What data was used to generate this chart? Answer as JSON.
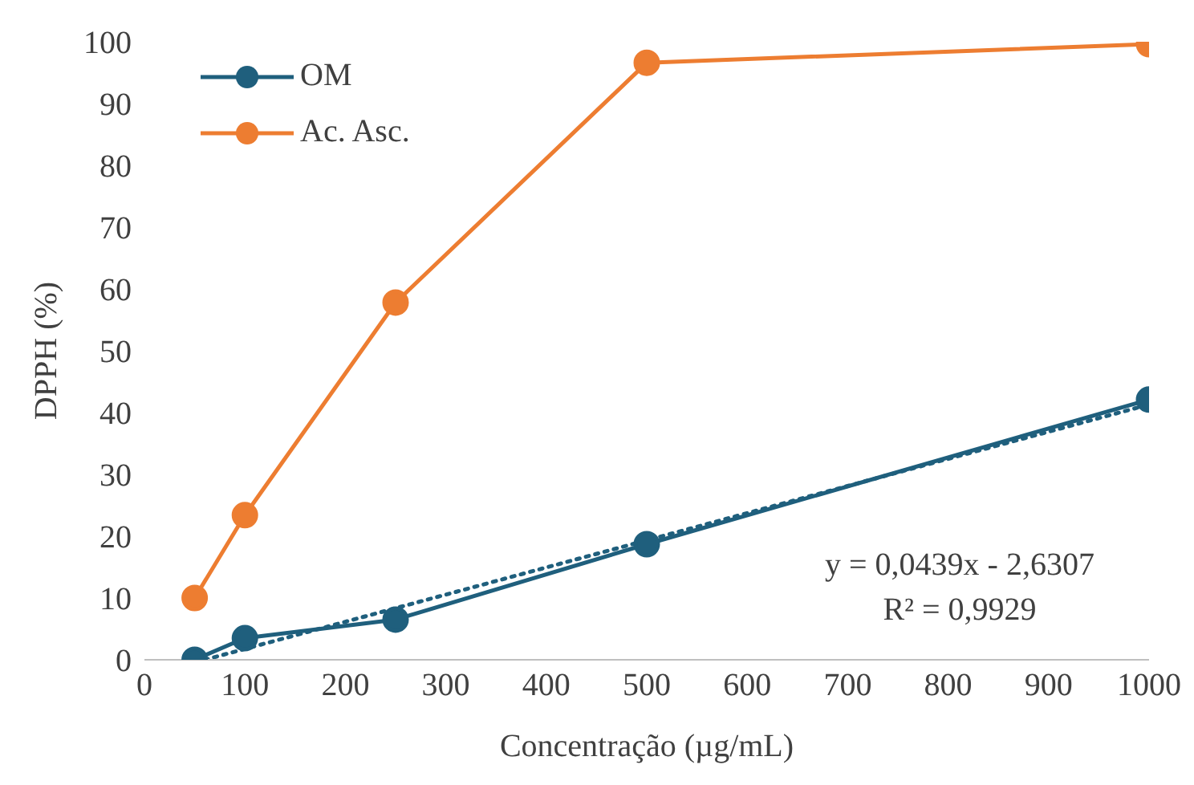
{
  "chart_data": {
    "type": "line",
    "xlabel": "Concentração (µg/mL)",
    "ylabel": "DPPH (%)",
    "x": [
      50,
      100,
      250,
      500,
      1000
    ],
    "xlim": [
      0,
      1000
    ],
    "xticks": [
      0,
      100,
      200,
      300,
      400,
      500,
      600,
      700,
      800,
      900,
      1000
    ],
    "ylim": [
      0,
      100
    ],
    "yticks": [
      0,
      10,
      20,
      30,
      40,
      50,
      60,
      70,
      80,
      90,
      100
    ],
    "legend": "top left",
    "marker": "circle",
    "line_style": "solid",
    "series": [
      {
        "name": "OM",
        "color": "#1f5f7d",
        "values": [
          0,
          3.5,
          6.5,
          18.7,
          42.1
        ]
      },
      {
        "name": "Ac. Asc.",
        "color": "#ed7d31",
        "values": [
          10,
          23.4,
          57.8,
          96.6,
          99.6
        ]
      },
      {
        "type": "line",
        "color": "#1f5f7d",
        "x": [
          60,
          1000
        ],
        "values": [
          0,
          41.3
        ],
        "marker": "none",
        "line_style": "dotted"
      }
    ],
    "annotations": [
      "y = 0,0439x - 2,6307",
      "R² = 0,9929"
    ]
  }
}
